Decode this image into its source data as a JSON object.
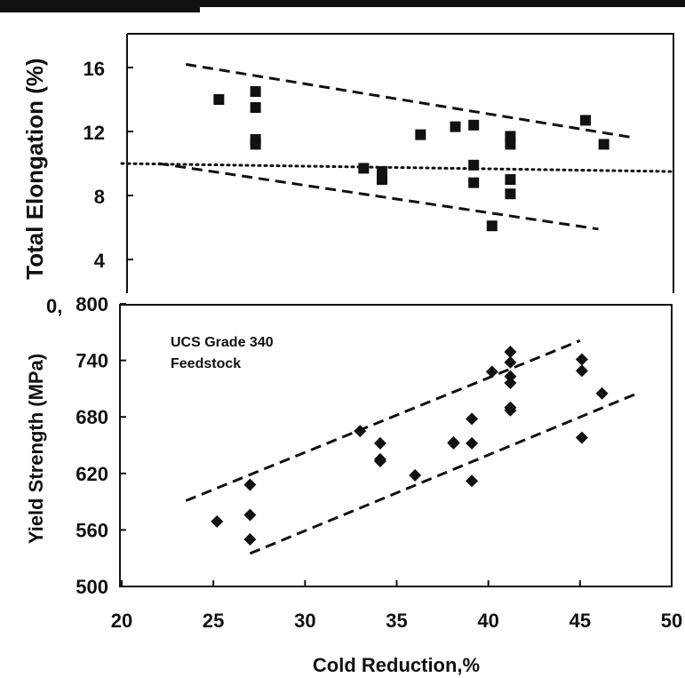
{
  "colors": {
    "ink": "#111111",
    "background": "#ffffff"
  },
  "chart_data": [
    {
      "type": "scatter",
      "title": "",
      "xlabel": "Cold Reduction,%",
      "ylabel": "Total Elongation (%)",
      "xlim": [
        20,
        50
      ],
      "ylim": [
        2,
        18
      ],
      "y_ticks": [
        "4",
        "8",
        "12",
        "16"
      ],
      "y_tick_values": [
        4,
        8,
        12,
        16
      ],
      "top_overlap_label": "0,",
      "marker": "square",
      "grid": false,
      "points": [
        {
          "x": 25.3,
          "y": 14.0
        },
        {
          "x": 27.3,
          "y": 14.5
        },
        {
          "x": 27.3,
          "y": 13.5
        },
        {
          "x": 27.3,
          "y": 11.5
        },
        {
          "x": 27.3,
          "y": 11.2
        },
        {
          "x": 33.2,
          "y": 9.7
        },
        {
          "x": 34.2,
          "y": 9.5
        },
        {
          "x": 34.2,
          "y": 9.0
        },
        {
          "x": 36.3,
          "y": 11.8
        },
        {
          "x": 38.2,
          "y": 12.3
        },
        {
          "x": 39.2,
          "y": 12.4
        },
        {
          "x": 39.2,
          "y": 9.9
        },
        {
          "x": 39.2,
          "y": 8.8
        },
        {
          "x": 40.2,
          "y": 6.1
        },
        {
          "x": 41.2,
          "y": 11.7
        },
        {
          "x": 41.2,
          "y": 11.2
        },
        {
          "x": 41.2,
          "y": 9.0
        },
        {
          "x": 41.2,
          "y": 8.1
        },
        {
          "x": 45.3,
          "y": 12.7
        },
        {
          "x": 46.3,
          "y": 11.2
        }
      ],
      "reference_lines": [
        {
          "style": "dashed",
          "x": [
            23.5,
            48.0
          ],
          "y": [
            16.2,
            11.6
          ]
        },
        {
          "style": "dashed",
          "x": [
            22.0,
            46.0
          ],
          "y": [
            10.0,
            5.9
          ]
        },
        {
          "style": "dotted",
          "x": [
            20.0,
            50.0
          ],
          "y": [
            10.0,
            9.5
          ]
        }
      ]
    },
    {
      "type": "scatter",
      "title": "",
      "xlabel": "Cold Reduction,%",
      "ylabel": "Yield Strength (MPa)",
      "xlim": [
        20,
        50
      ],
      "ylim": [
        500,
        800
      ],
      "x_ticks": [
        "20",
        "25",
        "30",
        "35",
        "40",
        "45",
        "50"
      ],
      "x_tick_values": [
        20,
        25,
        30,
        35,
        40,
        45,
        50
      ],
      "y_ticks": [
        "500",
        "560",
        "620",
        "680",
        "740",
        "800"
      ],
      "y_tick_values": [
        500,
        560,
        620,
        680,
        740,
        800
      ],
      "annotation": [
        "UCS Grade 340",
        "Feedstock"
      ],
      "marker": "diamond",
      "grid": false,
      "points": [
        {
          "x": 25.2,
          "y": 569
        },
        {
          "x": 27.0,
          "y": 608
        },
        {
          "x": 27.0,
          "y": 576
        },
        {
          "x": 27.0,
          "y": 550
        },
        {
          "x": 33.0,
          "y": 665
        },
        {
          "x": 34.1,
          "y": 652
        },
        {
          "x": 34.1,
          "y": 635
        },
        {
          "x": 34.1,
          "y": 633
        },
        {
          "x": 36.0,
          "y": 618
        },
        {
          "x": 38.1,
          "y": 653
        },
        {
          "x": 38.1,
          "y": 652
        },
        {
          "x": 39.1,
          "y": 678
        },
        {
          "x": 39.1,
          "y": 652
        },
        {
          "x": 39.1,
          "y": 612
        },
        {
          "x": 40.2,
          "y": 728
        },
        {
          "x": 41.2,
          "y": 749
        },
        {
          "x": 41.2,
          "y": 738
        },
        {
          "x": 41.2,
          "y": 723
        },
        {
          "x": 41.2,
          "y": 716
        },
        {
          "x": 41.2,
          "y": 690
        },
        {
          "x": 41.2,
          "y": 687
        },
        {
          "x": 45.1,
          "y": 741
        },
        {
          "x": 45.1,
          "y": 729
        },
        {
          "x": 45.1,
          "y": 658
        },
        {
          "x": 46.2,
          "y": 705
        }
      ],
      "reference_lines": [
        {
          "style": "dashed",
          "x": [
            23.5,
            45.0
          ],
          "y": [
            591,
            761
          ]
        },
        {
          "style": "dashed",
          "x": [
            27.0,
            48.0
          ],
          "y": [
            535,
            704
          ]
        }
      ]
    }
  ]
}
